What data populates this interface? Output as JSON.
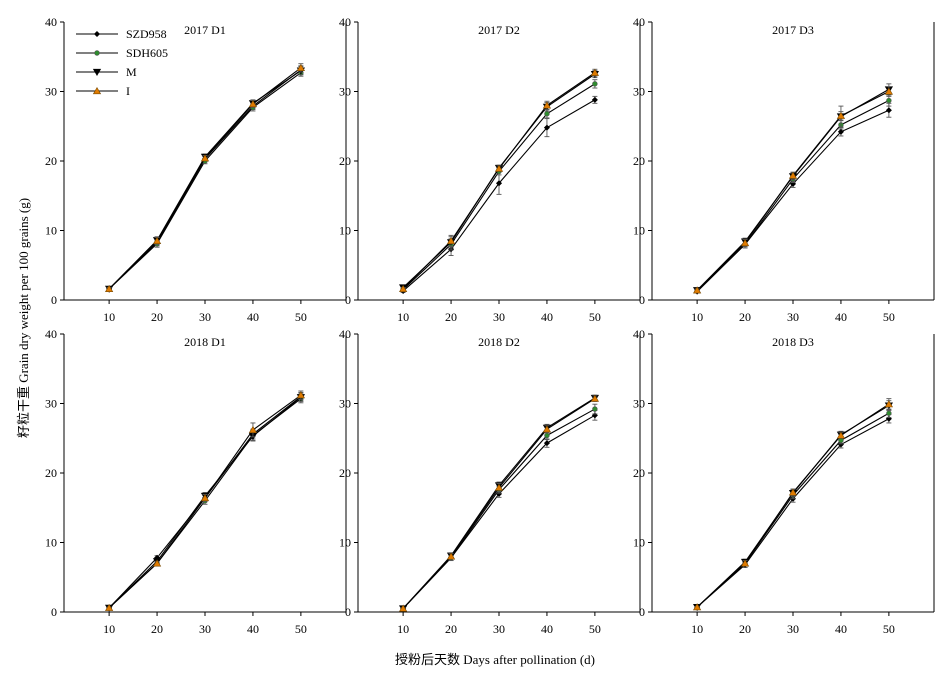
{
  "figure": {
    "ylabel": "籽粒干重 Grain dry weight per 100 grains (g)",
    "xlabel": "授粉后天数 Days after pollination (d)"
  },
  "legend": {
    "placement": "top-left of first panel",
    "entries": [
      {
        "name": "SZD958",
        "marker": "diamond",
        "color": "#000000"
      },
      {
        "name": "SDH605",
        "marker": "circle-green",
        "color": "#2e8b2e"
      },
      {
        "name": "M",
        "marker": "triangle-down",
        "color": "#000000"
      },
      {
        "name": "I",
        "marker": "triangle-up",
        "color": "#e07b00"
      }
    ]
  },
  "chart_data": [
    {
      "type": "line",
      "title": "2017 D1",
      "x": [
        10,
        20,
        30,
        40,
        50
      ],
      "xticks": [
        10,
        20,
        30,
        40,
        50
      ],
      "ylim": [
        0,
        40
      ],
      "yticks": [
        0,
        10,
        20,
        30,
        40
      ],
      "series": [
        {
          "name": "SZD958",
          "values": [
            1.6,
            8.3,
            20.3,
            27.9,
            33.1
          ],
          "errors": [
            0.2,
            0.5,
            0.4,
            0.5,
            0.6
          ]
        },
        {
          "name": "SDH605",
          "values": [
            1.6,
            8.1,
            20.0,
            27.7,
            32.7
          ],
          "errors": [
            0.2,
            0.5,
            0.4,
            0.5,
            0.5
          ]
        },
        {
          "name": "M",
          "values": [
            1.6,
            8.6,
            20.6,
            28.3,
            33.0
          ],
          "errors": [
            0.2,
            0.5,
            0.4,
            0.5,
            0.6
          ]
        },
        {
          "name": "I",
          "values": [
            1.6,
            8.5,
            20.4,
            28.2,
            33.4
          ],
          "errors": [
            0.2,
            0.5,
            0.4,
            0.5,
            0.6
          ]
        }
      ]
    },
    {
      "type": "line",
      "title": "2017 D2",
      "x": [
        10,
        20,
        30,
        40,
        50
      ],
      "xticks": [
        10,
        20,
        30,
        40,
        50
      ],
      "ylim": [
        0,
        40
      ],
      "yticks": [
        0,
        10,
        20,
        30,
        40
      ],
      "series": [
        {
          "name": "SZD958",
          "values": [
            1.3,
            7.3,
            16.8,
            24.8,
            28.8
          ],
          "errors": [
            0.2,
            0.9,
            1.6,
            1.3,
            0.5
          ]
        },
        {
          "name": "SDH605",
          "values": [
            1.5,
            8.0,
            18.5,
            26.8,
            31.1
          ],
          "errors": [
            0.2,
            0.8,
            0.5,
            0.6,
            0.6
          ]
        },
        {
          "name": "M",
          "values": [
            1.8,
            8.3,
            19.0,
            27.8,
            32.5
          ],
          "errors": [
            0.2,
            0.8,
            0.4,
            0.6,
            0.5
          ]
        },
        {
          "name": "I",
          "values": [
            1.6,
            8.5,
            18.9,
            28.0,
            32.7
          ],
          "errors": [
            0.2,
            0.8,
            0.4,
            0.6,
            0.5
          ]
        }
      ]
    },
    {
      "type": "line",
      "title": "2017 D3",
      "x": [
        10,
        20,
        30,
        40,
        50
      ],
      "xticks": [
        10,
        20,
        30,
        40,
        50
      ],
      "ylim": [
        0,
        40
      ],
      "yticks": [
        0,
        10,
        20,
        30,
        40
      ],
      "series": [
        {
          "name": "SZD958",
          "values": [
            1.2,
            8.0,
            16.7,
            24.2,
            27.3
          ],
          "errors": [
            0.2,
            0.5,
            0.5,
            0.6,
            1.0
          ]
        },
        {
          "name": "SDH605",
          "values": [
            1.3,
            8.0,
            17.4,
            25.2,
            28.7
          ],
          "errors": [
            0.2,
            0.5,
            0.5,
            0.6,
            0.8
          ]
        },
        {
          "name": "M",
          "values": [
            1.4,
            8.4,
            17.8,
            26.4,
            30.3
          ],
          "errors": [
            0.2,
            0.5,
            0.5,
            1.5,
            0.8
          ]
        },
        {
          "name": "I",
          "values": [
            1.4,
            8.2,
            17.9,
            26.5,
            30.0
          ],
          "errors": [
            0.2,
            0.5,
            0.5,
            0.6,
            0.7
          ]
        }
      ]
    },
    {
      "type": "line",
      "title": "2018 D1",
      "x": [
        10,
        20,
        30,
        40,
        50
      ],
      "xticks": [
        10,
        20,
        30,
        40,
        50
      ],
      "ylim": [
        0,
        40
      ],
      "yticks": [
        0,
        10,
        20,
        30,
        40
      ],
      "series": [
        {
          "name": "SZD958",
          "values": [
            0.6,
            7.8,
            16.4,
            25.6,
            31.0
          ],
          "errors": [
            0.1,
            0.3,
            0.5,
            0.7,
            0.6
          ]
        },
        {
          "name": "SDH605",
          "values": [
            0.6,
            7.0,
            16.0,
            25.4,
            30.7
          ],
          "errors": [
            0.1,
            0.3,
            0.5,
            0.7,
            0.6
          ]
        },
        {
          "name": "M",
          "values": [
            0.6,
            7.3,
            16.7,
            25.3,
            30.9
          ],
          "errors": [
            0.1,
            0.3,
            0.5,
            0.7,
            0.6
          ]
        },
        {
          "name": "I",
          "values": [
            0.6,
            7.0,
            16.4,
            26.2,
            31.2
          ],
          "errors": [
            0.1,
            0.3,
            0.5,
            1.0,
            0.6
          ]
        }
      ]
    },
    {
      "type": "line",
      "title": "2018 D2",
      "x": [
        10,
        20,
        30,
        40,
        50
      ],
      "xticks": [
        10,
        20,
        30,
        40,
        50
      ],
      "ylim": [
        0,
        40
      ],
      "yticks": [
        0,
        10,
        20,
        30,
        40
      ],
      "series": [
        {
          "name": "SZD958",
          "values": [
            0.5,
            7.8,
            17.0,
            24.3,
            28.3
          ],
          "errors": [
            0.1,
            0.4,
            0.5,
            0.6,
            0.7
          ]
        },
        {
          "name": "SDH605",
          "values": [
            0.5,
            7.8,
            17.6,
            25.4,
            29.2
          ],
          "errors": [
            0.1,
            0.4,
            0.5,
            0.6,
            0.7
          ]
        },
        {
          "name": "M",
          "values": [
            0.5,
            8.1,
            18.2,
            26.5,
            30.8
          ],
          "errors": [
            0.1,
            0.4,
            0.5,
            0.5,
            0.4
          ]
        },
        {
          "name": "I",
          "values": [
            0.5,
            8.0,
            17.9,
            26.3,
            30.7
          ],
          "errors": [
            0.1,
            0.4,
            0.6,
            0.5,
            0.4
          ]
        }
      ]
    },
    {
      "type": "line",
      "title": "2018 D3",
      "x": [
        10,
        20,
        30,
        40,
        50
      ],
      "xticks": [
        10,
        20,
        30,
        40,
        50
      ],
      "ylim": [
        0,
        40
      ],
      "yticks": [
        0,
        10,
        20,
        30,
        40
      ],
      "series": [
        {
          "name": "SZD958",
          "values": [
            0.7,
            6.8,
            16.3,
            24.1,
            27.8
          ],
          "errors": [
            0.1,
            0.4,
            0.5,
            0.5,
            0.6
          ]
        },
        {
          "name": "SDH605",
          "values": [
            0.7,
            7.0,
            16.8,
            24.7,
            28.6
          ],
          "errors": [
            0.1,
            0.4,
            0.5,
            0.5,
            0.6
          ]
        },
        {
          "name": "M",
          "values": [
            0.7,
            7.2,
            17.1,
            25.5,
            29.7
          ],
          "errors": [
            0.1,
            0.4,
            0.5,
            0.5,
            0.7
          ]
        },
        {
          "name": "I",
          "values": [
            0.7,
            7.0,
            17.2,
            25.4,
            29.9
          ],
          "errors": [
            0.1,
            0.4,
            0.5,
            0.4,
            0.8
          ]
        }
      ]
    }
  ]
}
